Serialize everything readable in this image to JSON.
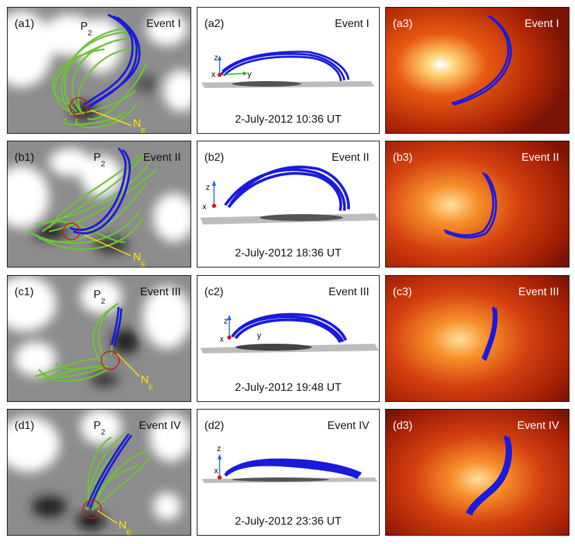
{
  "rows": [
    {
      "event": "Event I",
      "tags": [
        "(a1)",
        "(a2)",
        "(a3)"
      ],
      "p2": "P",
      "p2_sub": "2",
      "ne": "N",
      "ne_sub": "E",
      "date": "2-July-2012 10:36 UT",
      "axes": {
        "z": "z",
        "x": "x",
        "y": "y"
      }
    },
    {
      "event": "Event II",
      "tags": [
        "(b1)",
        "(b2)",
        "(b3)"
      ],
      "p2": "P",
      "p2_sub": "2",
      "ne": "N",
      "ne_sub": "E",
      "date": "2-July-2012 18:36 UT",
      "axes": {
        "z": "z",
        "x": "x"
      }
    },
    {
      "event": "Event III",
      "tags": [
        "(c1)",
        "(c2)",
        "(c3)"
      ],
      "p2": "P",
      "p2_sub": "2",
      "ne": "N",
      "ne_sub": "E",
      "date": "2-July-2012 19:48 UT",
      "axes": {
        "z": "z",
        "x": "x",
        "y": "y"
      }
    },
    {
      "event": "Event IV",
      "tags": [
        "(d1)",
        "(d2)",
        "(d3)"
      ],
      "p2": "P",
      "p2_sub": "2",
      "ne": "N",
      "ne_sub": "E",
      "date": "2-July-2012 23:36 UT",
      "axes": {
        "z": "z",
        "x": "x"
      }
    }
  ],
  "colors": {
    "flux_rope": "#1a1adc",
    "field_lines": "#6fc23a",
    "ne_marker": "#ffe300",
    "circle": "#d01818",
    "euv": "#c02808"
  }
}
